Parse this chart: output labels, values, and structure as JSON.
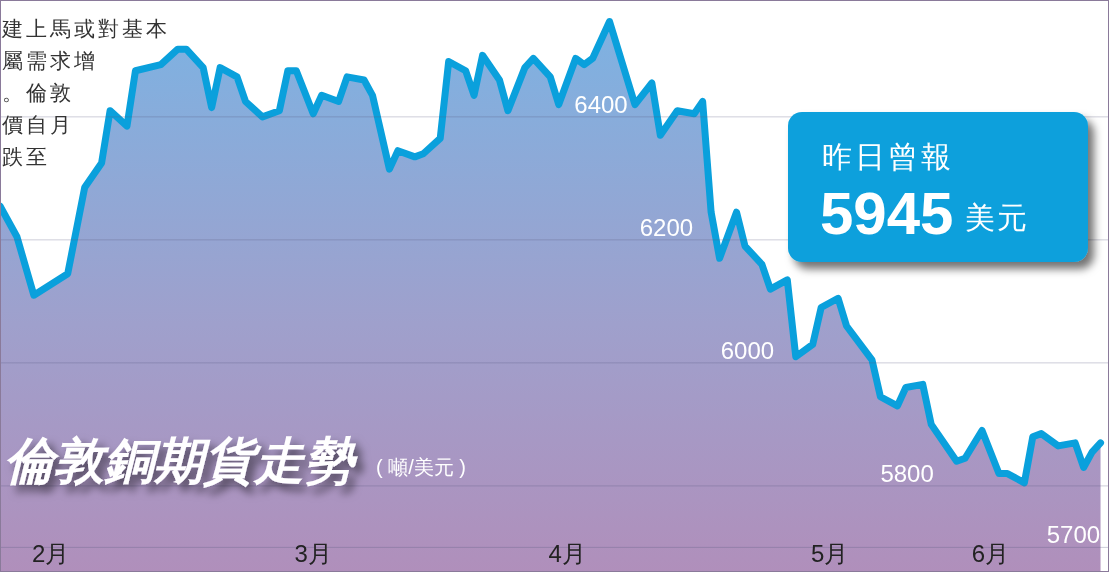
{
  "chart_data": {
    "type": "area",
    "title": "倫敦銅期貨走勢",
    "subtitle": "( 噸/美元 )",
    "x": [
      "--02-07",
      "--02-09",
      "--02-11",
      "--02-15",
      "--02-17",
      "--02-19",
      "--02-20",
      "--02-22",
      "--02-23",
      "--02-26",
      "--02-28",
      "--03-01",
      "--03-03",
      "--03-04",
      "--03-05",
      "--03-07",
      "--03-08",
      "--03-10",
      "--03-12",
      "--03-13",
      "--03-14",
      "--03-16",
      "--03-17",
      "--03-19",
      "--03-20",
      "--03-22",
      "--03-23",
      "--03-25",
      "--03-26",
      "--03-28",
      "--03-29",
      "--03-31",
      "--04-01",
      "--04-03",
      "--04-04",
      "--04-05",
      "--04-07",
      "--04-08",
      "--04-10",
      "--04-11",
      "--04-13",
      "--04-14",
      "--04-16",
      "--04-17",
      "--04-18",
      "--04-20",
      "--04-23",
      "--04-25",
      "--04-26",
      "--04-28",
      "--04-30",
      "--05-01",
      "--05-02",
      "--05-03",
      "--05-05",
      "--05-06",
      "--05-08",
      "--05-09",
      "--05-11",
      "--05-12",
      "--05-14",
      "--05-15",
      "--05-17",
      "--05-18",
      "--05-21",
      "--05-22",
      "--05-24",
      "--05-25",
      "--05-27",
      "--05-28",
      "--05-31",
      "--06-01",
      "--06-03",
      "--06-05",
      "--06-06",
      "--06-08",
      "--06-09",
      "--06-10",
      "--06-12",
      "--06-14",
      "--06-15",
      "--06-16",
      "--06-17"
    ],
    "series": [
      {
        "color": "#0aa0dc",
        "values": [
          6255,
          6205,
          6110,
          6145,
          6285,
          6325,
          6410,
          6385,
          6475,
          6485,
          6510,
          6510,
          6480,
          6415,
          6480,
          6465,
          6425,
          6400,
          6410,
          6475,
          6475,
          6405,
          6435,
          6425,
          6465,
          6460,
          6435,
          6315,
          6345,
          6335,
          6340,
          6365,
          6490,
          6475,
          6435,
          6500,
          6460,
          6410,
          6480,
          6495,
          6465,
          6420,
          6495,
          6485,
          6495,
          6555,
          6420,
          6455,
          6370,
          6410,
          6405,
          6425,
          6245,
          6170,
          6245,
          6190,
          6160,
          6120,
          6135,
          6010,
          6030,
          6090,
          6105,
          6060,
          6005,
          5945,
          5930,
          5960,
          5965,
          5900,
          5840,
          5845,
          5890,
          5820,
          5820,
          5805,
          5880,
          5885,
          5865,
          5870,
          5830,
          5855,
          5870
        ]
      }
    ],
    "xlim": [
      "--02-07",
      "--06-18"
    ],
    "ylim": [
      5660,
      6590
    ],
    "xticks": [
      {
        "value": "--02-13",
        "label": "2月"
      },
      {
        "value": "--03-16",
        "label": "3月"
      },
      {
        "value": "--04-15",
        "label": "4月"
      },
      {
        "value": "--05-16",
        "label": "5月"
      },
      {
        "value": "--06-04",
        "label": "6月"
      }
    ],
    "ref_lines": [
      {
        "axis": "y",
        "value": 6400,
        "label": "6400",
        "color": "#5a5a80"
      },
      {
        "axis": "y",
        "value": 6200,
        "label": "6200",
        "color": "#5a5a80"
      },
      {
        "axis": "y",
        "value": 6000,
        "label": "6000",
        "color": "#5a5a80"
      },
      {
        "axis": "y",
        "value": 5800,
        "label": "5800",
        "color": "#5a5a80"
      },
      {
        "axis": "y",
        "value": 5700,
        "label": "5700",
        "color": "#5a5a80"
      }
    ],
    "annotations": [
      "建上馬或對基本",
      "屬需求增",
      "。倫敦",
      "價自月",
      "跌至",
      "昨日曾報",
      "5945",
      "美元"
    ]
  }
}
